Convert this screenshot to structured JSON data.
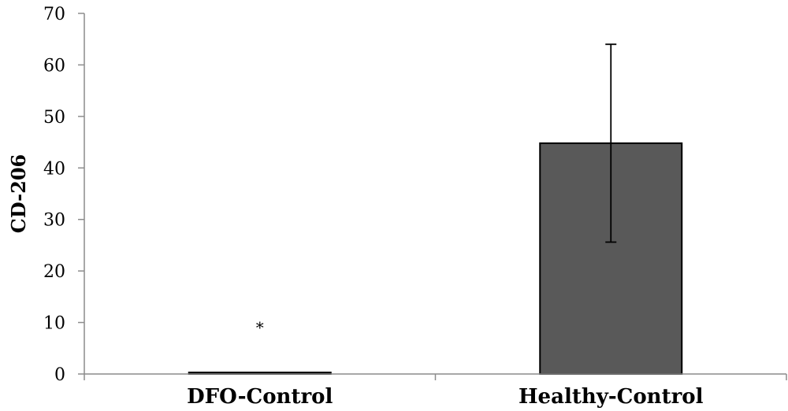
{
  "chart_data": {
    "type": "bar",
    "categories": [
      "DFO-Control",
      "Healthy-Control"
    ],
    "values": [
      0.3,
      44.8
    ],
    "error_bars": [
      null,
      {
        "low": 25.6,
        "high": 64.0
      }
    ],
    "annotations": [
      {
        "category": "DFO-Control",
        "text": "*",
        "y": 9.5
      }
    ],
    "title": "",
    "xlabel": "",
    "ylabel": "CD-206",
    "ylim": [
      0,
      70
    ],
    "yticks": [
      0,
      10,
      20,
      30,
      40,
      50,
      60,
      70
    ],
    "grid": false,
    "legend": "none",
    "colors": {
      "bar": "#595959",
      "bar_stroke": "#000000",
      "axis": "#8c8c8c"
    }
  }
}
